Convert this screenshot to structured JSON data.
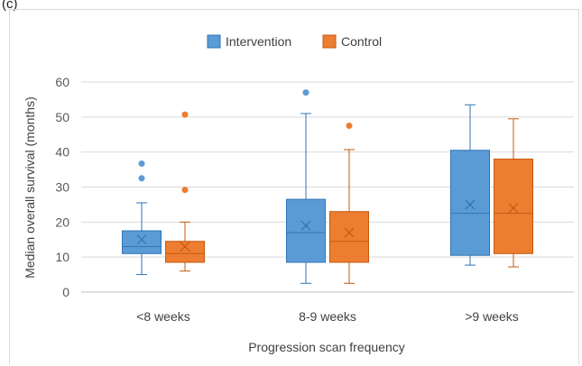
{
  "panel_label": "(c)",
  "chart_data": {
    "type": "box",
    "title": "",
    "xlabel": "Progression scan frequency",
    "ylabel": "Median overall survival (months)",
    "ylim": [
      0,
      60
    ],
    "yticks": [
      0,
      10,
      20,
      30,
      40,
      50,
      60
    ],
    "grid": true,
    "legend_position": "top",
    "categories": [
      "<8 weeks",
      "8-9 weeks",
      ">9 weeks"
    ],
    "series": [
      {
        "name": "Intervention",
        "color": "#5b9bd5",
        "stroke": "#2e75b6",
        "boxes": [
          {
            "min": 5,
            "q1": 11,
            "median": 13,
            "q3": 17.5,
            "max": 25.5,
            "mean": 15,
            "outliers": [
              32.5,
              36.7
            ]
          },
          {
            "min": 2.5,
            "q1": 8.5,
            "median": 17,
            "q3": 26.5,
            "max": 51,
            "mean": 19,
            "outliers": [
              57
            ]
          },
          {
            "min": 7.7,
            "q1": 10.5,
            "median": 22.5,
            "q3": 40.5,
            "max": 53.5,
            "mean": 25,
            "outliers": []
          }
        ]
      },
      {
        "name": "Control",
        "color": "#ed7d31",
        "stroke": "#c55a11",
        "boxes": [
          {
            "min": 6,
            "q1": 8.5,
            "median": 11,
            "q3": 14.5,
            "max": 20,
            "mean": 13,
            "outliers": [
              29.2,
              50.7
            ]
          },
          {
            "min": 2.5,
            "q1": 8.5,
            "median": 14.5,
            "q3": 23,
            "max": 40.7,
            "mean": 17,
            "outliers": [
              47.5
            ]
          },
          {
            "min": 7.2,
            "q1": 11,
            "median": 22.5,
            "q3": 38,
            "max": 49.5,
            "mean": 24,
            "outliers": []
          }
        ]
      }
    ]
  }
}
